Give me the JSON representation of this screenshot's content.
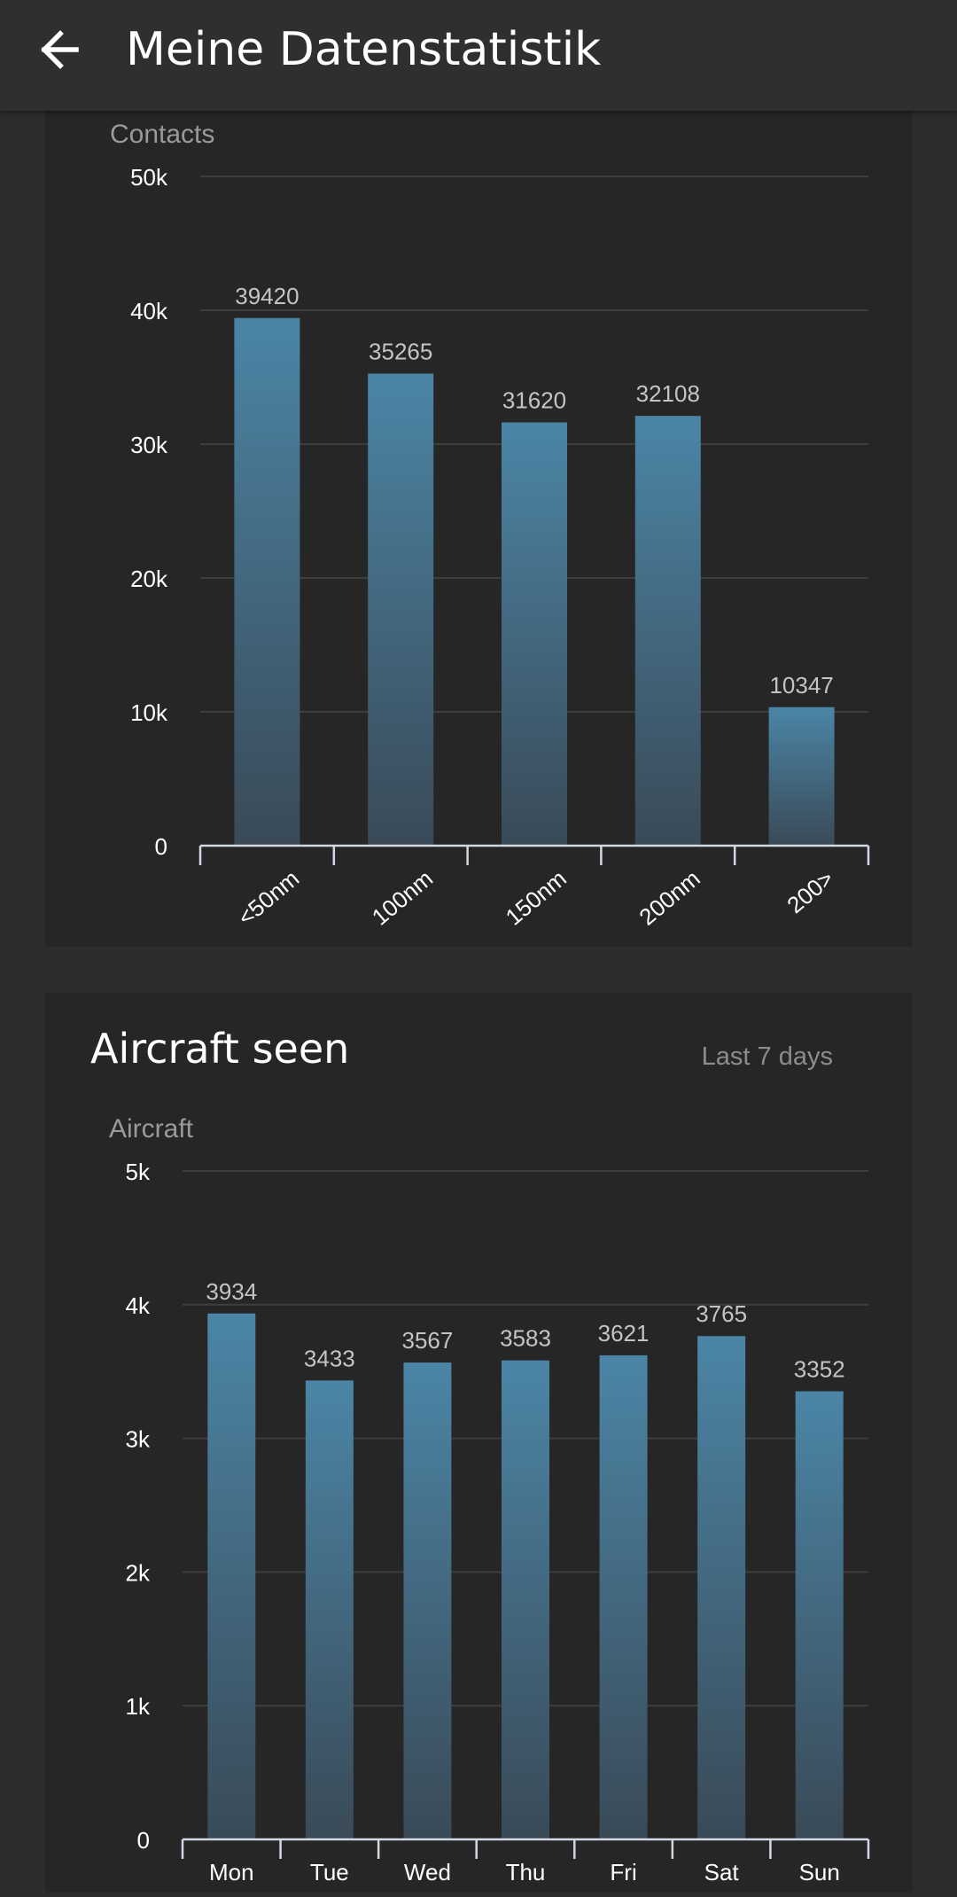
{
  "app": {
    "title": "Meine Datenstatistik"
  },
  "colors": {
    "bar_top": "#4b85a6",
    "bar_bottom": "#3a4a57",
    "grid": "#3e3e3e",
    "axis": "#cfd8e3",
    "value_label": "#c4c4c4",
    "unit_label": "#9a9a9a"
  },
  "icons": {
    "back": "arrow-left-icon"
  },
  "chart_data": [
    {
      "type": "bar",
      "title": "",
      "unit_label": "Contacts",
      "categories": [
        "<50nm",
        "100nm",
        "150nm",
        "200nm",
        "200>"
      ],
      "values": [
        39420,
        35265,
        31620,
        32108,
        10347
      ],
      "ylim": [
        0,
        50000
      ],
      "yticks": [
        "0",
        "10k",
        "20k",
        "30k",
        "40k",
        "50k"
      ],
      "grid": true,
      "xlabel": "",
      "ylabel": "Contacts"
    },
    {
      "type": "bar",
      "title": "Aircraft seen",
      "subtitle": "Last 7 days",
      "unit_label": "Aircraft",
      "categories": [
        "Mon",
        "Tue",
        "Wed",
        "Thu",
        "Fri",
        "Sat",
        "Sun"
      ],
      "values": [
        3934,
        3433,
        3567,
        3583,
        3621,
        3765,
        3352
      ],
      "ylim": [
        0,
        5000
      ],
      "yticks": [
        "0",
        "1k",
        "2k",
        "3k",
        "4k",
        "5k"
      ],
      "grid": true,
      "xlabel": "",
      "ylabel": "Aircraft"
    }
  ]
}
